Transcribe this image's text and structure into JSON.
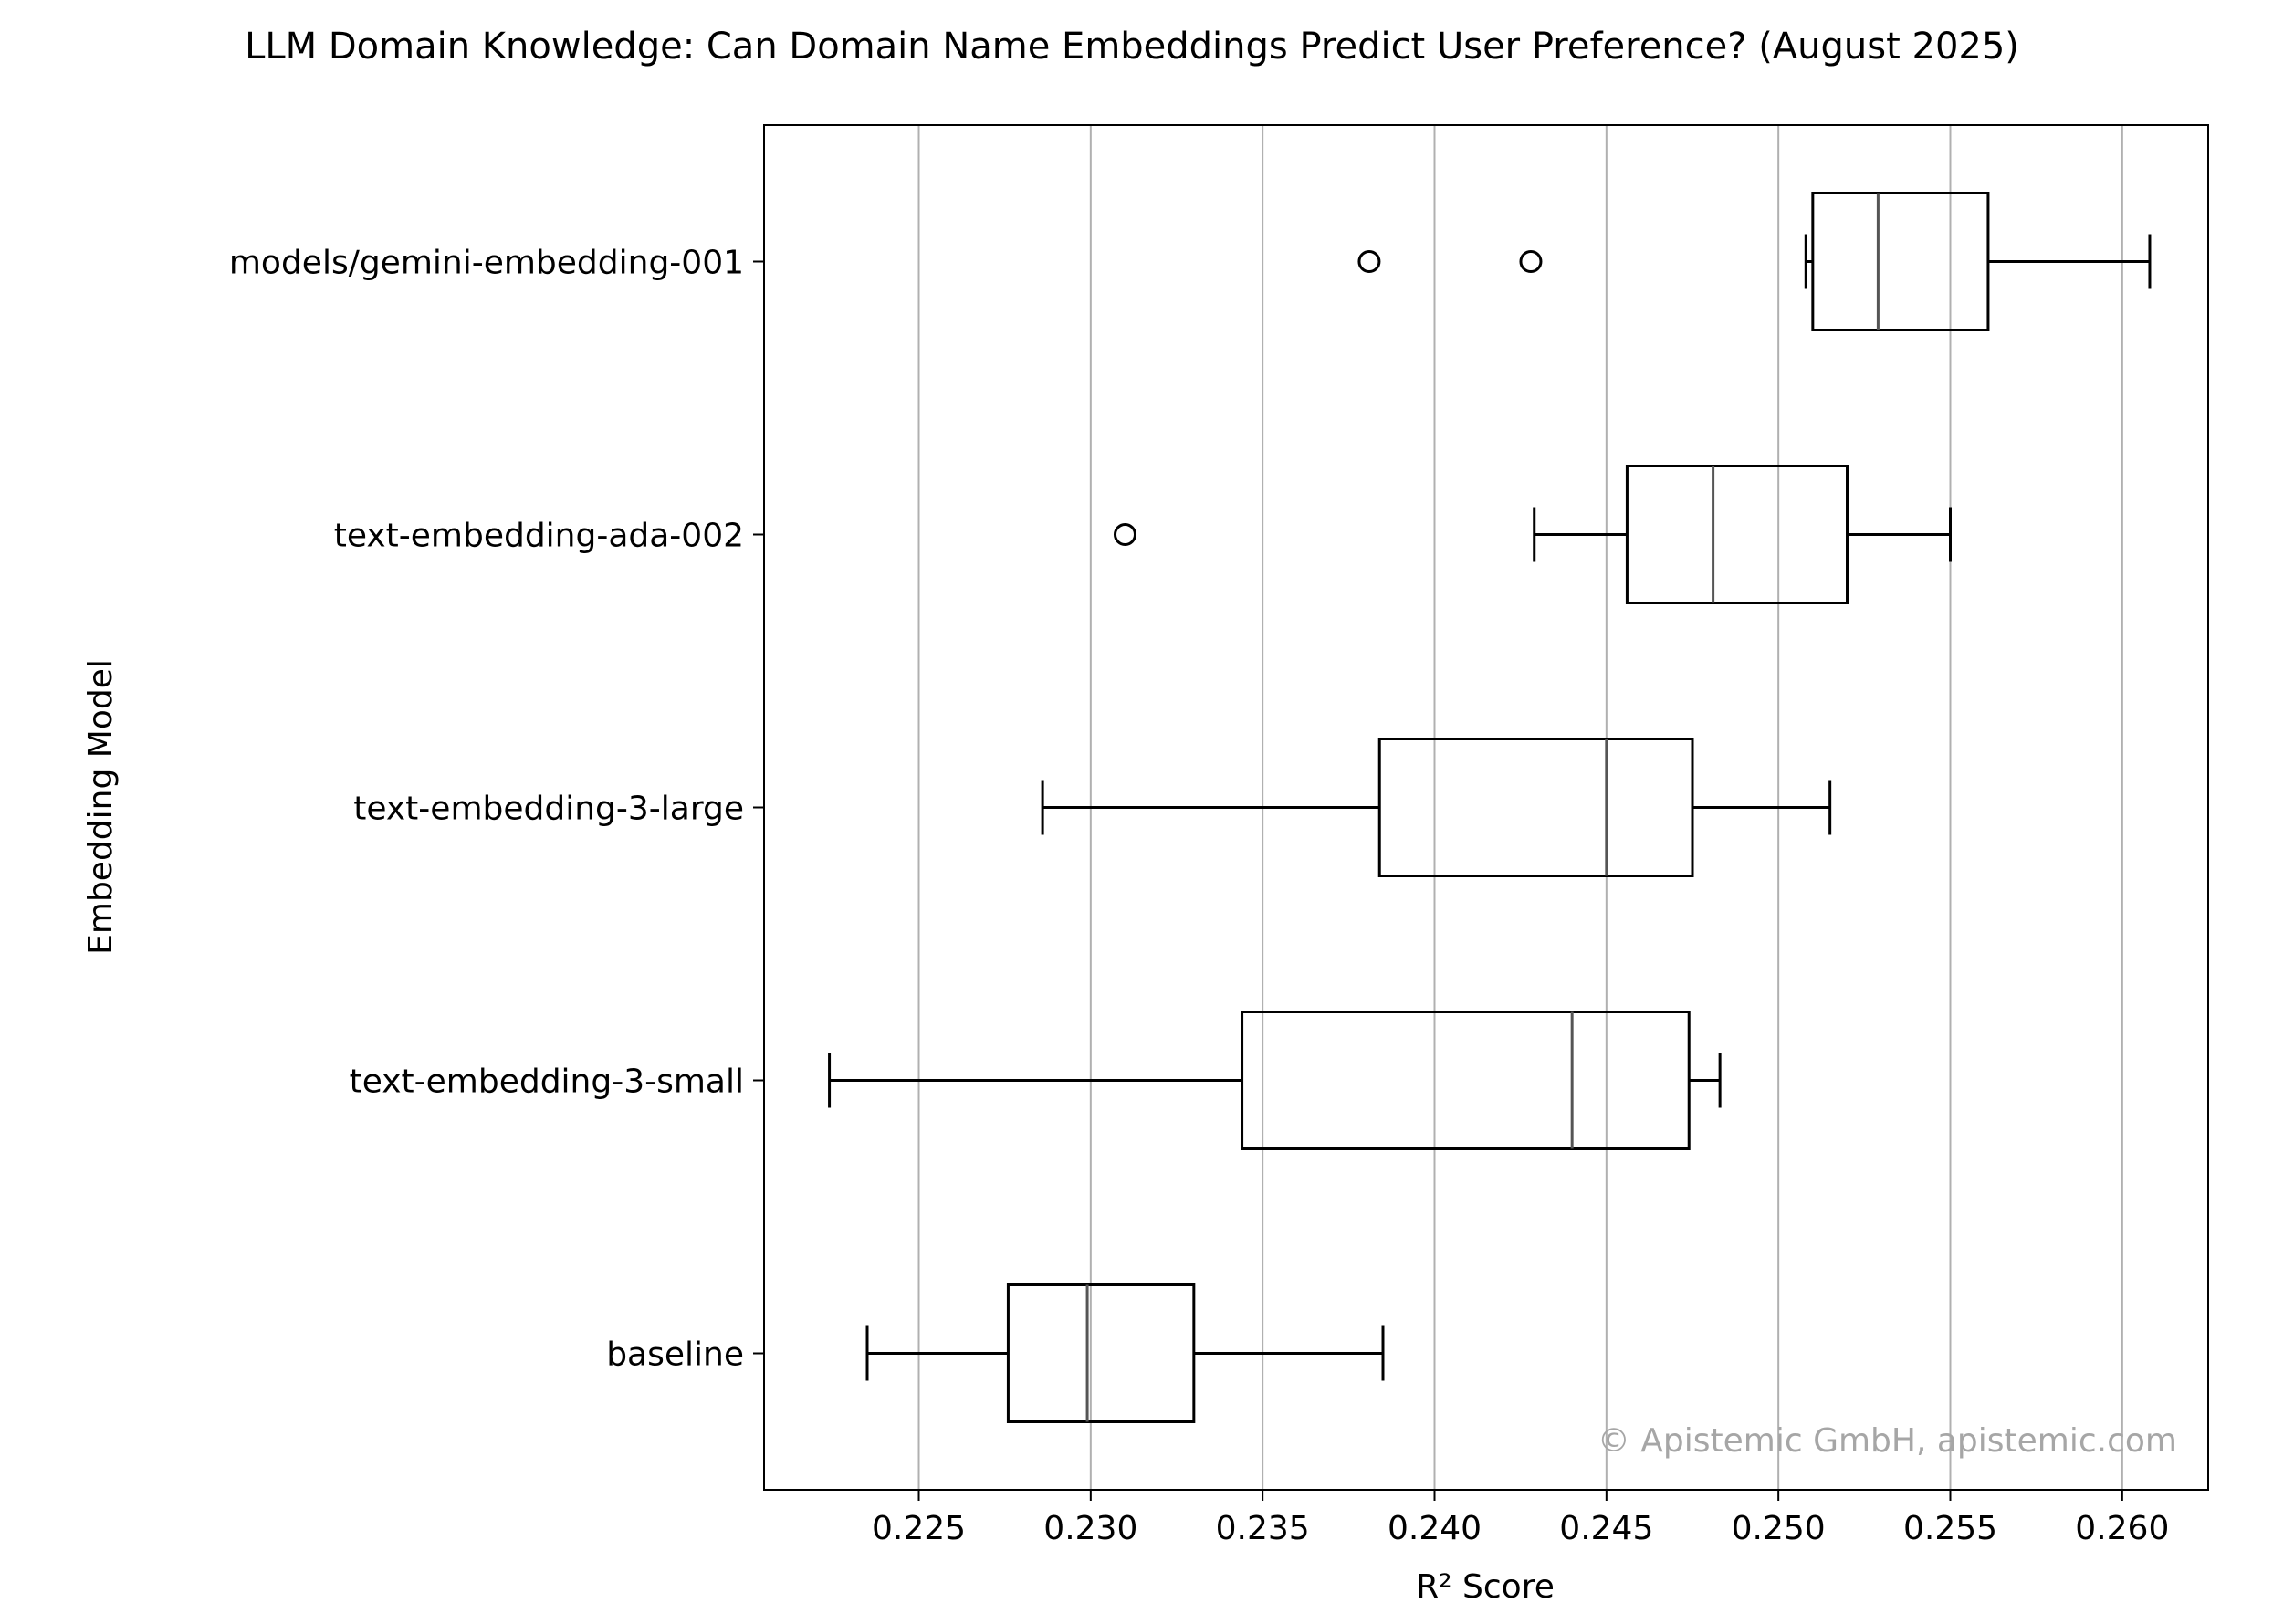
{
  "chart_data": {
    "type": "boxplot",
    "orientation": "horizontal",
    "title": "LLM Domain Knowledge: Can Domain Name Embeddings Predict User Preference? (August 2025)",
    "xlabel": "R² Score",
    "ylabel": "Embedding Model",
    "xlim": [
      0.2205,
      0.2625
    ],
    "xticks": [
      "0.225",
      "0.230",
      "0.235",
      "0.240",
      "0.245",
      "0.250",
      "0.255",
      "0.260"
    ],
    "grid": "vertical",
    "watermark": "© Apistemic GmbH, apistemic.com",
    "series": [
      {
        "name": "models/gemini-embedding-001",
        "whisker_low": 0.2508,
        "q1": 0.251,
        "median": 0.2529,
        "q3": 0.2561,
        "whisker_high": 0.2608,
        "outliers": [
          0.2381,
          0.2428
        ]
      },
      {
        "name": "text-embedding-ada-002",
        "whisker_low": 0.2429,
        "q1": 0.2456,
        "median": 0.2481,
        "q3": 0.252,
        "whisker_high": 0.255,
        "outliers": [
          0.231
        ]
      },
      {
        "name": "text-embedding-3-large",
        "whisker_low": 0.2286,
        "q1": 0.2384,
        "median": 0.245,
        "q3": 0.2475,
        "whisker_high": 0.2515,
        "outliers": []
      },
      {
        "name": "text-embedding-3-small",
        "whisker_low": 0.2224,
        "q1": 0.2344,
        "median": 0.244,
        "q3": 0.2474,
        "whisker_high": 0.2483,
        "outliers": []
      },
      {
        "name": "baseline",
        "whisker_low": 0.2235,
        "q1": 0.2276,
        "median": 0.2299,
        "q3": 0.233,
        "whisker_high": 0.2385,
        "outliers": []
      }
    ],
    "colors": {
      "box": "#000000",
      "median": "#555555",
      "grid": "#b0b0b0",
      "watermark": "#a6a6a6"
    }
  }
}
